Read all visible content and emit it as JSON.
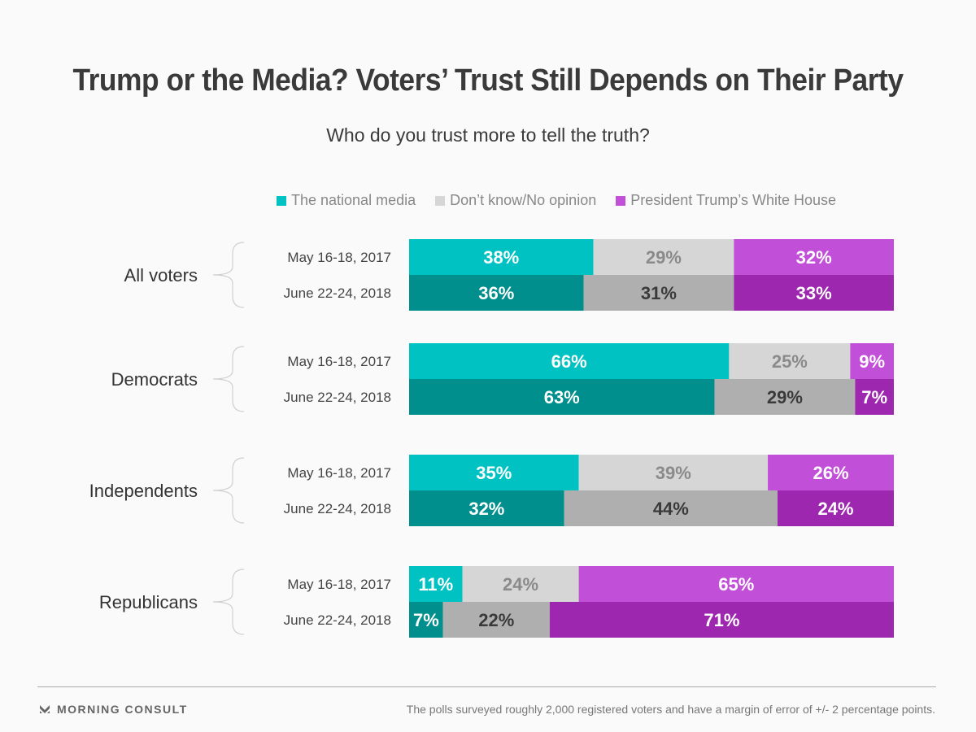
{
  "title": "Trump or the Media? Voters’ Trust Still Depends on Their Party",
  "subtitle": "Who do you trust more to tell the truth?",
  "footer": {
    "brand": "MORNING CONSULT",
    "brand_icon": "morning-consult-logo-icon",
    "note": "The polls surveyed roughly 2,000 registered voters and have a margin of error of +/- 2 percentage points."
  },
  "chart_data": {
    "type": "bar",
    "orientation": "horizontal",
    "stacked": true,
    "title": "Trump or the Media? Voters’ Trust Still Depends on Their Party",
    "subtitle": "Who do you trust more to tell the truth?",
    "legend_position": "top",
    "legend": [
      "The national media",
      "Don’t know/No opinion",
      "President Trump’s White House"
    ],
    "series_colors": {
      "2017": [
        "#00c2c2",
        "#d6d6d6",
        "#c24fd8"
      ],
      "2018": [
        "#008f8c",
        "#afafaf",
        "#9d27ae"
      ]
    },
    "label_colors": {
      "2017": [
        "#ffffff",
        "#8a8a8a",
        "#ffffff"
      ],
      "2018": [
        "#ffffff",
        "#3a3a3a",
        "#ffffff"
      ]
    },
    "xlim": [
      0,
      100
    ],
    "groups": [
      {
        "name": "All voters",
        "rows": [
          {
            "label": "May 16-18, 2017",
            "key": "2017",
            "values": [
              38,
              29,
              32
            ]
          },
          {
            "label": "June 22-24, 2018",
            "key": "2018",
            "values": [
              36,
              31,
              33
            ]
          }
        ]
      },
      {
        "name": "Democrats",
        "rows": [
          {
            "label": "May 16-18, 2017",
            "key": "2017",
            "values": [
              66,
              25,
              9
            ]
          },
          {
            "label": "June 22-24, 2018",
            "key": "2018",
            "values": [
              63,
              29,
              7
            ]
          }
        ]
      },
      {
        "name": "Independents",
        "rows": [
          {
            "label": "May 16-18, 2017",
            "key": "2017",
            "values": [
              35,
              39,
              26
            ]
          },
          {
            "label": "June 22-24, 2018",
            "key": "2018",
            "values": [
              32,
              44,
              24
            ]
          }
        ]
      },
      {
        "name": "Republicans",
        "rows": [
          {
            "label": "May 16-18, 2017",
            "key": "2017",
            "values": [
              11,
              24,
              65
            ]
          },
          {
            "label": "June 22-24, 2018",
            "key": "2018",
            "values": [
              7,
              22,
              71
            ]
          }
        ]
      }
    ]
  }
}
